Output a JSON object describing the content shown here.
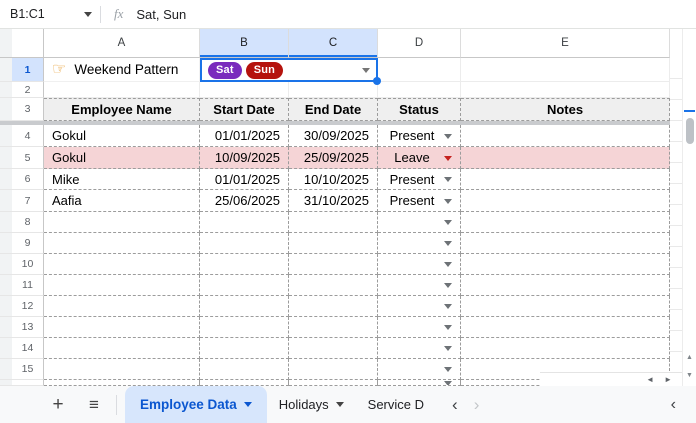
{
  "formula_bar": {
    "name_box": "B1:C1",
    "fx_label": "fx",
    "formula": "Sat, Sun"
  },
  "column_letters": [
    "A",
    "B",
    "C",
    "D",
    "E"
  ],
  "selected_columns": [
    "B",
    "C"
  ],
  "row_numbers": [
    1,
    2,
    3,
    4,
    5,
    6,
    7,
    8,
    9,
    10,
    11,
    12,
    13,
    14,
    15
  ],
  "cells": {
    "a1_icon": "☞",
    "a1_label": "Weekend Pattern",
    "weekend_chips": [
      {
        "label": "Sat",
        "color": "#7a2bbd"
      },
      {
        "label": "Sun",
        "color": "#b5130d"
      }
    ]
  },
  "table": {
    "headers": [
      "Employee Name",
      "Start Date",
      "End Date",
      "Status",
      "Notes"
    ],
    "rows": [
      {
        "name": "Gokul",
        "start_date": "01/01/2025",
        "end_date": "30/09/2025",
        "status": "Present",
        "notes": "",
        "highlighted": false,
        "status_arrow": "gray"
      },
      {
        "name": "Gokul",
        "start_date": "10/09/2025",
        "end_date": "25/09/2025",
        "status": "Leave",
        "notes": "",
        "highlighted": true,
        "status_arrow": "red"
      },
      {
        "name": "Mike",
        "start_date": "01/01/2025",
        "end_date": "10/10/2025",
        "status": "Present",
        "notes": "",
        "highlighted": false,
        "status_arrow": "gray"
      },
      {
        "name": "Aafia",
        "start_date": "25/06/2025",
        "end_date": "31/10/2025",
        "status": "Present",
        "notes": "",
        "highlighted": false,
        "status_arrow": "gray"
      }
    ]
  },
  "sheet_tabs": [
    {
      "label": "Employee Data",
      "active": true
    },
    {
      "label": "Holidays",
      "active": false
    },
    {
      "label": "Service D",
      "active": false
    }
  ],
  "colors": {
    "accent_blue": "#1a73e8",
    "active_tab_text": "#0b57d0",
    "selection_bg": "#d3e3fd",
    "table_header_bg": "#efefef",
    "leave_row_bg": "#f5d4d6",
    "leave_arrow_red": "#c5221f",
    "chip_sat": "#7a2bbd",
    "chip_sun": "#b5130d"
  }
}
